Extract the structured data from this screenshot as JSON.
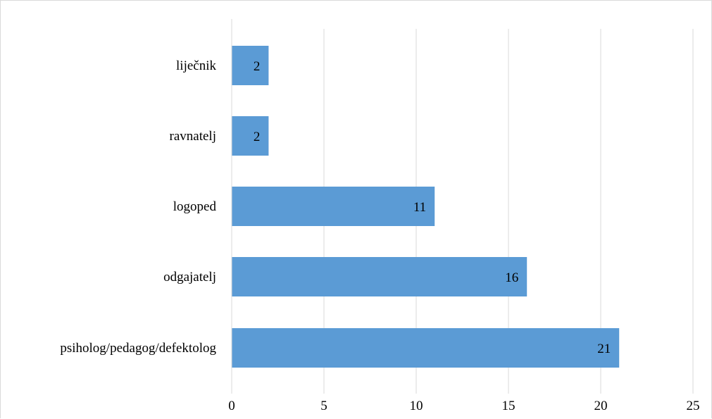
{
  "chart_data": {
    "type": "bar",
    "orientation": "horizontal",
    "categories": [
      "liječnik",
      "ravnatelj",
      "logoped",
      "odgajatelj",
      "psiholog/pedagog/defektolog"
    ],
    "values": [
      2,
      2,
      11,
      16,
      21
    ],
    "data_labels": [
      "2",
      "2",
      "11",
      "16",
      "21"
    ],
    "title": "",
    "xlabel": "",
    "ylabel": "",
    "xlim": [
      0,
      25
    ],
    "x_ticks": [
      0,
      5,
      10,
      15,
      20,
      25
    ],
    "x_tick_labels": [
      "0",
      "5",
      "10",
      "15",
      "20",
      "25"
    ],
    "grid": "vertical",
    "legend": "none",
    "bar_color": "#5b9bd5",
    "grid_color": "#d9d9d9"
  }
}
